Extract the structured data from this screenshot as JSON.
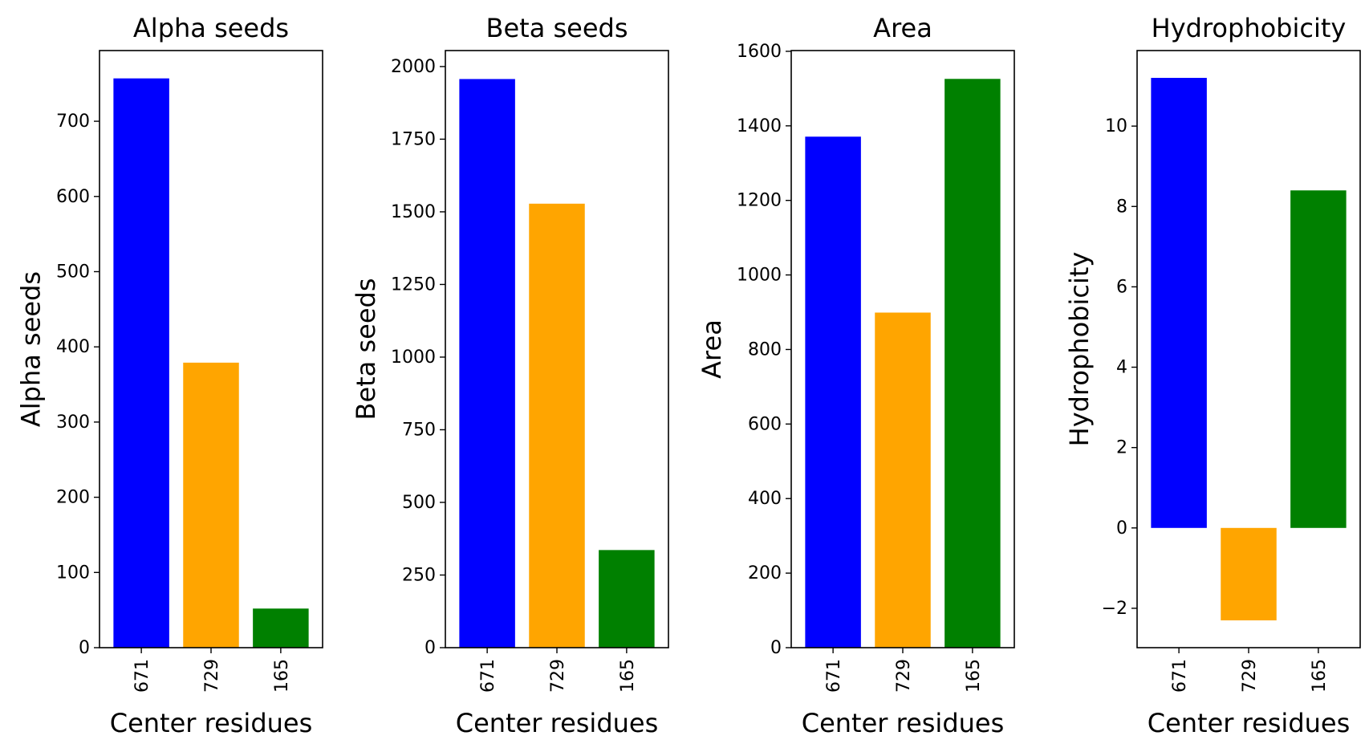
{
  "chart_data": [
    {
      "type": "bar",
      "title": "Alpha seeds",
      "xlabel": "Center residues",
      "ylabel": "Alpha seeds",
      "categories": [
        "671",
        "729",
        "165"
      ],
      "values": [
        757,
        379,
        52
      ],
      "colors": [
        "#0000ff",
        "#ffa500",
        "#008000"
      ],
      "ylim": [
        0,
        794
      ],
      "yticks": [
        0,
        100,
        200,
        300,
        400,
        500,
        600,
        700
      ],
      "ytick_labels": [
        "0",
        "100",
        "200",
        "300",
        "400",
        "500",
        "600",
        "700"
      ],
      "grid": false,
      "legend": "none"
    },
    {
      "type": "bar",
      "title": "Beta seeds",
      "xlabel": "Center residues",
      "ylabel": "Beta seeds",
      "categories": [
        "671",
        "729",
        "165"
      ],
      "values": [
        1957,
        1528,
        336
      ],
      "colors": [
        "#0000ff",
        "#ffa500",
        "#008000"
      ],
      "ylim": [
        0,
        2055
      ],
      "yticks": [
        0,
        250,
        500,
        750,
        1000,
        1250,
        1500,
        1750,
        2000
      ],
      "ytick_labels": [
        "0",
        "250",
        "500",
        "750",
        "1000",
        "1250",
        "1500",
        "1750",
        "2000"
      ],
      "grid": false,
      "legend": "none"
    },
    {
      "type": "bar",
      "title": "Area",
      "xlabel": "Center residues",
      "ylabel": "Area",
      "categories": [
        "671",
        "729",
        "165"
      ],
      "values": [
        1371,
        899,
        1526
      ],
      "colors": [
        "#0000ff",
        "#ffa500",
        "#008000"
      ],
      "ylim": [
        0,
        1602
      ],
      "yticks": [
        0,
        200,
        400,
        600,
        800,
        1000,
        1200,
        1400,
        1600
      ],
      "ytick_labels": [
        "0",
        "200",
        "400",
        "600",
        "800",
        "1000",
        "1200",
        "1400",
        "1600"
      ],
      "grid": false,
      "legend": "none"
    },
    {
      "type": "bar",
      "title": "Hydrophobicity",
      "xlabel": "Center residues",
      "ylabel": "Hydrophobicity",
      "categories": [
        "671",
        "729",
        "165"
      ],
      "values": [
        11.2,
        -2.3,
        8.4
      ],
      "colors": [
        "#0000ff",
        "#ffa500",
        "#008000"
      ],
      "ylim": [
        -2.98,
        11.88
      ],
      "yticks": [
        -2,
        0,
        2,
        4,
        6,
        8,
        10
      ],
      "ytick_labels": [
        "−2",
        "0",
        "2",
        "4",
        "6",
        "8",
        "10"
      ],
      "grid": false,
      "legend": "none"
    }
  ]
}
